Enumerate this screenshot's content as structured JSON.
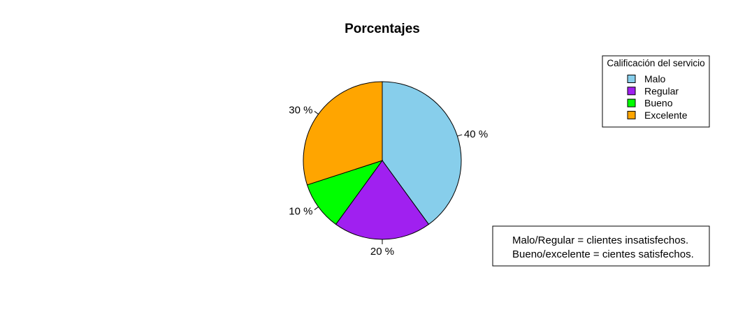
{
  "chart_data": {
    "type": "pie",
    "title": "Porcentajes",
    "categories": [
      "Malo",
      "Regular",
      "Bueno",
      "Excelente"
    ],
    "values": [
      40,
      20,
      10,
      30
    ],
    "labels": [
      "40 %",
      "20 %",
      "10 %",
      "30 %"
    ],
    "colors": [
      "#87CEEB",
      "#A020F0",
      "#00FF00",
      "#FFA500"
    ],
    "legend": {
      "title": "Calificación del servicio",
      "position": "top-right"
    },
    "note": {
      "lines": [
        "Malo/Regular = clientes insatisfechos.",
        "Bueno/excelente = cientes satisfechos."
      ],
      "position": "bottom-right"
    }
  }
}
